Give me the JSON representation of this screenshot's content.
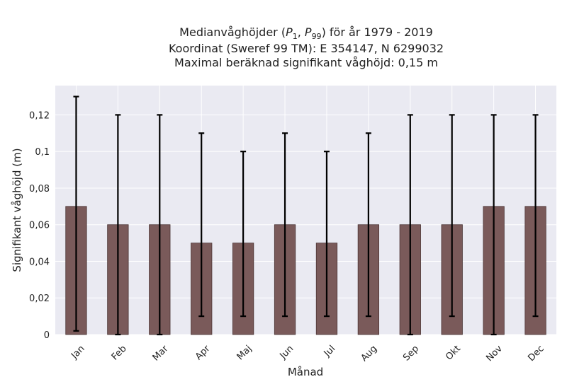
{
  "chart_data": {
    "type": "bar",
    "title_lines": [
      "Medianvåghöjder (P",
      "Koordinat (Sweref 99 TM): E 354147, N 6299032",
      "Maximal beräknad signifikant våghöjd: 0,15 m"
    ],
    "title_first_line": {
      "prefix": "Medianvåghöjder (",
      "p1_base": "P",
      "p1_sub": "1",
      "comma": ", ",
      "p99_base": "P",
      "p99_sub": "99",
      "suffix": ") för år 1979 - 2019"
    },
    "xlabel": "Månad",
    "ylabel": "Signifikant våghöjd (m)",
    "categories": [
      "Jan",
      "Feb",
      "Mar",
      "Apr",
      "Maj",
      "Jun",
      "Jul",
      "Aug",
      "Sep",
      "Okt",
      "Nov",
      "Dec"
    ],
    "values": [
      0.07,
      0.06,
      0.06,
      0.05,
      0.05,
      0.06,
      0.05,
      0.06,
      0.06,
      0.06,
      0.07,
      0.07
    ],
    "p1": [
      0.002,
      0.0,
      0.0,
      0.01,
      0.01,
      0.01,
      0.01,
      0.01,
      0.0,
      0.01,
      0.0,
      0.01
    ],
    "p99": [
      0.13,
      0.12,
      0.12,
      0.11,
      0.1,
      0.11,
      0.1,
      0.11,
      0.12,
      0.12,
      0.12,
      0.12
    ],
    "ylim": [
      0,
      0.136
    ],
    "yticks": [
      0,
      0.02,
      0.04,
      0.06,
      0.08,
      0.1,
      0.12
    ],
    "ytick_labels": [
      "0",
      "0,02",
      "0,04",
      "0,06",
      "0,08",
      "0,1",
      "0,12"
    ],
    "grid": true,
    "colors": {
      "bar_fill": "#7a5a5a",
      "bar_edge": "#4a3434",
      "errorbar": "#000000",
      "plot_background": "#eaeaf2",
      "grid": "#ffffff"
    }
  }
}
